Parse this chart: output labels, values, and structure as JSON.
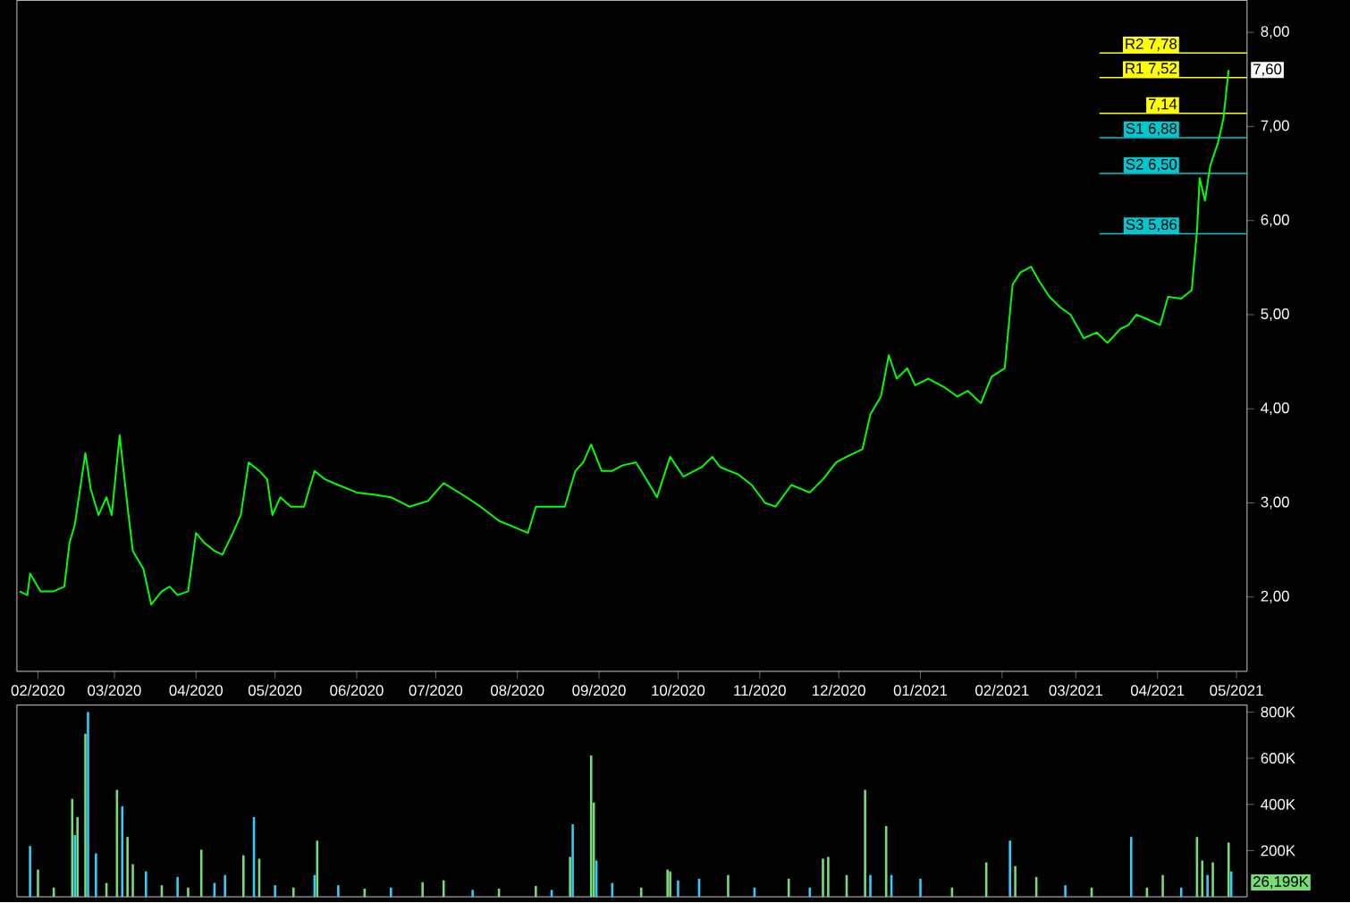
{
  "chart_data": [
    {
      "type": "line",
      "color": "#00ff00",
      "x": [
        "2020-01-25",
        "2020-01-28",
        "2020-01-29",
        "2020-02-02",
        "2020-02-07",
        "2020-02-11",
        "2020-02-13",
        "2020-02-15",
        "2020-02-19",
        "2020-02-21",
        "2020-02-24",
        "2020-02-27",
        "2020-02-29",
        "2020-03-03",
        "2020-03-06",
        "2020-03-08",
        "2020-03-12",
        "2020-03-15",
        "2020-03-19",
        "2020-03-22",
        "2020-03-25",
        "2020-03-29",
        "2020-04-01",
        "2020-04-04",
        "2020-04-08",
        "2020-04-11",
        "2020-04-15",
        "2020-04-18",
        "2020-04-21",
        "2020-04-25",
        "2020-04-28",
        "2020-04-30",
        "2020-05-03",
        "2020-05-07",
        "2020-05-12",
        "2020-05-16",
        "2020-05-20",
        "2020-05-25",
        "2020-06-01",
        "2020-06-07",
        "2020-06-14",
        "2020-06-21",
        "2020-06-28",
        "2020-07-04",
        "2020-07-11",
        "2020-07-18",
        "2020-07-25",
        "2020-07-31",
        "2020-08-05",
        "2020-08-08",
        "2020-08-14",
        "2020-08-19",
        "2020-08-23",
        "2020-08-26",
        "2020-08-29",
        "2020-09-02",
        "2020-09-06",
        "2020-09-10",
        "2020-09-15",
        "2020-09-19",
        "2020-09-23",
        "2020-09-28",
        "2020-10-03",
        "2020-10-10",
        "2020-10-14",
        "2020-10-17",
        "2020-10-24",
        "2020-10-29",
        "2020-11-03",
        "2020-11-07",
        "2020-11-13",
        "2020-11-20",
        "2020-11-25",
        "2020-11-30",
        "2020-12-04",
        "2020-12-10",
        "2020-12-13",
        "2020-12-17",
        "2020-12-20",
        "2020-12-23",
        "2020-12-27",
        "2020-12-30",
        "2021-01-04",
        "2021-01-10",
        "2021-01-15",
        "2021-01-19",
        "2021-01-24",
        "2021-01-28",
        "2021-02-02",
        "2021-02-05",
        "2021-02-08",
        "2021-02-12",
        "2021-02-15",
        "2021-02-19",
        "2021-02-23",
        "2021-02-27",
        "2021-03-04",
        "2021-03-09",
        "2021-03-13",
        "2021-03-18",
        "2021-03-21",
        "2021-03-24",
        "2021-03-29",
        "2021-04-02",
        "2021-04-05",
        "2021-04-10",
        "2021-04-14",
        "2021-04-16",
        "2021-04-17",
        "2021-04-19",
        "2021-04-21",
        "2021-04-24",
        "2021-04-26",
        "2021-04-28"
      ],
      "values": [
        2.06,
        2.02,
        2.25,
        2.06,
        2.06,
        2.11,
        2.58,
        2.77,
        3.53,
        3.15,
        2.87,
        3.06,
        2.87,
        3.72,
        2.96,
        2.49,
        2.3,
        1.92,
        2.06,
        2.11,
        2.02,
        2.06,
        2.68,
        2.58,
        2.49,
        2.45,
        2.68,
        2.87,
        3.43,
        3.34,
        3.25,
        2.87,
        3.06,
        2.96,
        2.96,
        3.34,
        3.25,
        3.19,
        3.11,
        3.09,
        3.06,
        2.96,
        3.02,
        3.21,
        3.09,
        2.96,
        2.81,
        2.74,
        2.68,
        2.96,
        2.96,
        2.96,
        3.34,
        3.43,
        3.62,
        3.34,
        3.34,
        3.4,
        3.43,
        3.25,
        3.06,
        3.49,
        3.28,
        3.38,
        3.49,
        3.38,
        3.3,
        3.19,
        3.0,
        2.96,
        3.19,
        3.11,
        3.25,
        3.43,
        3.49,
        3.57,
        3.94,
        4.13,
        4.57,
        4.32,
        4.43,
        4.25,
        4.32,
        4.23,
        4.13,
        4.19,
        4.06,
        4.34,
        4.43,
        5.32,
        5.45,
        5.51,
        5.36,
        5.19,
        5.08,
        5.0,
        4.75,
        4.81,
        4.7,
        4.85,
        4.89,
        5.0,
        4.94,
        4.89,
        5.19,
        5.17,
        5.26,
        5.89,
        6.45,
        6.21,
        6.58,
        6.83,
        7.08,
        7.6
      ],
      "xlim": [
        "2020-01-24",
        "2021-05-05"
      ],
      "xticks": [
        {
          "value": "2020-02-01",
          "label": "02/2020"
        },
        {
          "value": "2020-03-01",
          "label": "03/2020"
        },
        {
          "value": "2020-04-01",
          "label": "04/2020"
        },
        {
          "value": "2020-05-01",
          "label": "05/2020"
        },
        {
          "value": "2020-06-01",
          "label": "06/2020"
        },
        {
          "value": "2020-07-01",
          "label": "07/2020"
        },
        {
          "value": "2020-08-01",
          "label": "08/2020"
        },
        {
          "value": "2020-09-01",
          "label": "09/2020"
        },
        {
          "value": "2020-10-01",
          "label": "10/2020"
        },
        {
          "value": "2020-11-01",
          "label": "11/2020"
        },
        {
          "value": "2020-12-01",
          "label": "12/2020"
        },
        {
          "value": "2021-01-01",
          "label": "01/2021"
        },
        {
          "value": "2021-02-01",
          "label": "02/2021"
        },
        {
          "value": "2021-03-01",
          "label": "03/2021"
        },
        {
          "value": "2021-04-01",
          "label": "04/2021"
        },
        {
          "value": "2021-05-01",
          "label": "05/2021"
        }
      ],
      "ylim": [
        1.21,
        8.34
      ],
      "yticks": [
        {
          "value": 2,
          "label": "2,00"
        },
        {
          "value": 3,
          "label": "3,00"
        },
        {
          "value": 4,
          "label": "4,00"
        },
        {
          "value": 5,
          "label": "5,00"
        },
        {
          "value": 6,
          "label": "6,00"
        },
        {
          "value": 7,
          "label": "7,00"
        },
        {
          "value": 8,
          "label": "8,00"
        }
      ],
      "ref_lines": [
        {
          "axis": "y",
          "value": 7.78,
          "label": "R2 7,78",
          "color": "#ffff00"
        },
        {
          "axis": "y",
          "value": 7.52,
          "label": "R1 7,52",
          "color": "#ffff00"
        },
        {
          "axis": "y",
          "value": 7.14,
          "label": "7,14",
          "color": "#ffff00"
        },
        {
          "axis": "y",
          "value": 6.88,
          "label": "S1 6,88",
          "color": "#00c8d0"
        },
        {
          "axis": "y",
          "value": 6.5,
          "label": "S2 6,50",
          "color": "#00c8d0"
        },
        {
          "axis": "y",
          "value": 5.86,
          "label": "S3 5,86",
          "color": "#00c8d0"
        }
      ],
      "annotations": [
        {
          "text": "7,60",
          "x": "2021-04-28",
          "y": 7.6
        }
      ]
    },
    {
      "type": "bar",
      "x": [
        "2020-01-29",
        "2020-02-01",
        "2020-02-07",
        "2020-02-14",
        "2020-02-15",
        "2020-02-16",
        "2020-02-19",
        "2020-02-20",
        "2020-02-23",
        "2020-02-27",
        "2020-03-02",
        "2020-03-04",
        "2020-03-06",
        "2020-03-08",
        "2020-03-13",
        "2020-03-19",
        "2020-03-25",
        "2020-03-29",
        "2020-04-03",
        "2020-04-08",
        "2020-04-12",
        "2020-04-19",
        "2020-04-23",
        "2020-04-25",
        "2020-05-01",
        "2020-05-08",
        "2020-05-16",
        "2020-05-17",
        "2020-05-25",
        "2020-06-04",
        "2020-06-14",
        "2020-06-26",
        "2020-07-04",
        "2020-07-15",
        "2020-07-25",
        "2020-08-08",
        "2020-08-14",
        "2020-08-21",
        "2020-08-22",
        "2020-08-29",
        "2020-08-30",
        "2020-08-31",
        "2020-09-06",
        "2020-09-17",
        "2020-09-27",
        "2020-09-28",
        "2020-10-01",
        "2020-10-09",
        "2020-10-20",
        "2020-10-30",
        "2020-11-12",
        "2020-11-20",
        "2020-11-25",
        "2020-11-27",
        "2020-12-04",
        "2020-12-11",
        "2020-12-13",
        "2020-12-19",
        "2020-12-21",
        "2021-01-01",
        "2021-01-13",
        "2021-01-26",
        "2021-02-04",
        "2021-02-06",
        "2021-02-14",
        "2021-02-25",
        "2021-03-07",
        "2021-03-22",
        "2021-03-28",
        "2021-04-03",
        "2021-04-10",
        "2021-04-16",
        "2021-04-18",
        "2021-04-20",
        "2021-04-22",
        "2021-04-28",
        "2021-04-29"
      ],
      "values": [
        220000,
        118000,
        40000,
        424000,
        267000,
        345000,
        706000,
        800000,
        188000,
        60000,
        463000,
        392000,
        259000,
        141000,
        110000,
        50000,
        86000,
        40000,
        204000,
        60000,
        94000,
        180000,
        345000,
        165000,
        50000,
        40000,
        94000,
        243000,
        50000,
        35000,
        40000,
        63000,
        71000,
        30000,
        35000,
        47000,
        30000,
        173000,
        314000,
        612000,
        408000,
        157000,
        60000,
        40000,
        118000,
        110000,
        71000,
        78000,
        94000,
        40000,
        78000,
        40000,
        165000,
        173000,
        94000,
        463000,
        94000,
        306000,
        94000,
        78000,
        40000,
        149000,
        243000,
        133000,
        86000,
        50000,
        40000,
        259000,
        40000,
        94000,
        40000,
        259000,
        157000,
        94000,
        149000,
        235000,
        110000
      ],
      "colors": [
        "#33ccff",
        "#77dd77",
        "#77dd77",
        "#77dd77",
        "#33ccff",
        "#77dd77",
        "#77dd77",
        "#33ccff",
        "#33ccff",
        "#77dd77",
        "#77dd77",
        "#33ccff",
        "#77dd77",
        "#77dd77",
        "#33ccff",
        "#77dd77",
        "#33ccff",
        "#77dd77",
        "#77dd77",
        "#33ccff",
        "#33ccff",
        "#77dd77",
        "#33ccff",
        "#77dd77",
        "#33ccff",
        "#77dd77",
        "#33ccff",
        "#77dd77",
        "#33ccff",
        "#77dd77",
        "#33ccff",
        "#77dd77",
        "#77dd77",
        "#33ccff",
        "#77dd77",
        "#77dd77",
        "#33ccff",
        "#77dd77",
        "#33ccff",
        "#77dd77",
        "#77dd77",
        "#33ccff",
        "#33ccff",
        "#77dd77",
        "#77dd77",
        "#77dd77",
        "#33ccff",
        "#33ccff",
        "#77dd77",
        "#33ccff",
        "#77dd77",
        "#33ccff",
        "#77dd77",
        "#77dd77",
        "#77dd77",
        "#77dd77",
        "#33ccff",
        "#77dd77",
        "#33ccff",
        "#33ccff",
        "#77dd77",
        "#77dd77",
        "#33ccff",
        "#77dd77",
        "#77dd77",
        "#33ccff",
        "#77dd77",
        "#33ccff",
        "#77dd77",
        "#77dd77",
        "#33ccff",
        "#77dd77",
        "#77dd77",
        "#33ccff",
        "#77dd77",
        "#77dd77",
        "#33ccff"
      ],
      "xlim": [
        "2020-01-24",
        "2021-05-05"
      ],
      "ylim": [
        0,
        830000
      ],
      "yticks": [
        {
          "value": 200000,
          "label": "200K"
        },
        {
          "value": 400000,
          "label": "400K"
        },
        {
          "value": 600000,
          "label": "600K"
        },
        {
          "value": 800000,
          "label": "800K"
        }
      ],
      "tick_labels": "y",
      "annotations": [
        {
          "text": "26,199K",
          "x": "2021-04-29",
          "y": 26199
        }
      ]
    }
  ]
}
